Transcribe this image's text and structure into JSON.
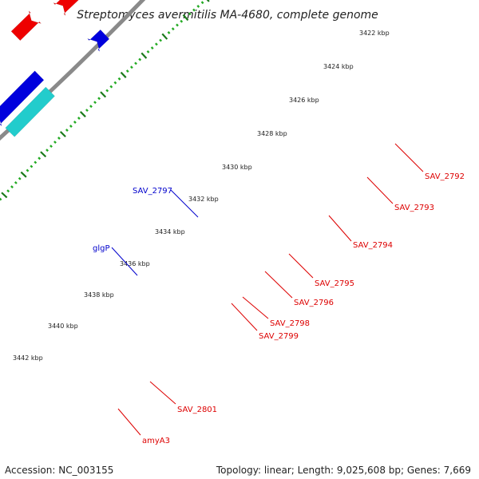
{
  "title": "Streptomyces avermitilis MA-4680, complete genome",
  "footer": {
    "accession": "Accession: NC_003155",
    "summary": "Topology: linear; Length: 9,025,608 bp; Genes: 7,669"
  },
  "tick_labels": [
    "3422 kbp",
    "3424 kbp",
    "3426 kbp",
    "3428 kbp",
    "3430 kbp",
    "3432 kbp",
    "3434 kbp",
    "3436 kbp",
    "3438 kbp",
    "3440 kbp",
    "3442 kbp"
  ],
  "colors": {
    "backbone": "#8a8a8a",
    "tick_major": "#1a7a1a",
    "tick_minor": "#22aa22",
    "red_gene": "#ee0000",
    "cyan_gene": "#22cccc",
    "blue_gene": "#0000dd",
    "green_gene": "#22ee99",
    "steel_gene": "#4a7aaa",
    "grey_gene": "#555555",
    "olive_gene": "#b8a860",
    "label_red": "#dd0000",
    "label_blue": "#0000cc"
  },
  "gene_labels": [
    {
      "name": "SAV_2792",
      "color": "label_red"
    },
    {
      "name": "SAV_2793",
      "color": "label_red"
    },
    {
      "name": "SAV_2794",
      "color": "label_red"
    },
    {
      "name": "SAV_2795",
      "color": "label_red"
    },
    {
      "name": "SAV_2796",
      "color": "label_red"
    },
    {
      "name": "SAV_2798",
      "color": "label_red"
    },
    {
      "name": "SAV_2799",
      "color": "label_red"
    },
    {
      "name": "SAV_2801",
      "color": "label_red"
    },
    {
      "name": "amyA3",
      "color": "label_red"
    },
    {
      "name": "SAV_2797",
      "color": "label_blue"
    },
    {
      "name": "glgP",
      "color": "label_blue"
    }
  ]
}
